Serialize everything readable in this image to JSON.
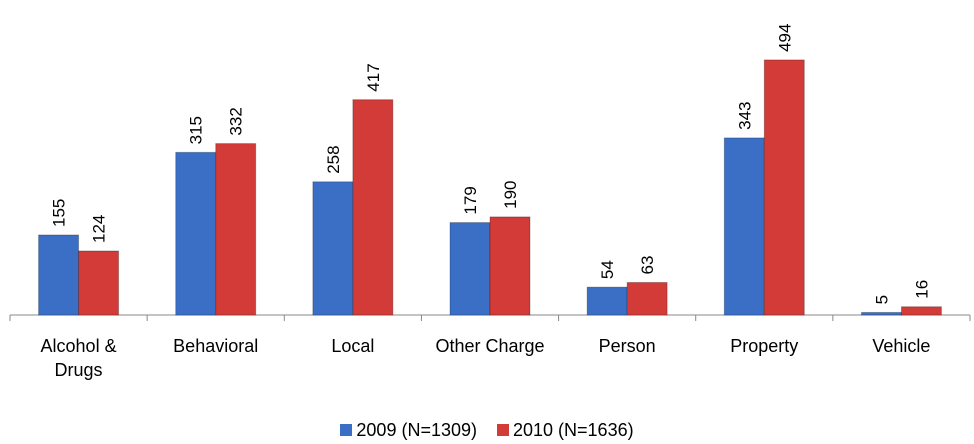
{
  "chart_data": {
    "type": "bar",
    "categories": [
      "Alcohol & Drugs",
      "Behavioral",
      "Local",
      "Other Charge",
      "Person",
      "Property",
      "Vehicle"
    ],
    "series": [
      {
        "name": "2009 (N=1309)",
        "color": "#3b6fc6",
        "values": [
          155,
          315,
          258,
          179,
          54,
          343,
          5
        ]
      },
      {
        "name": "2010 (N=1636)",
        "color": "#d23b37",
        "values": [
          124,
          332,
          417,
          190,
          63,
          494,
          16
        ]
      }
    ],
    "ylim": [
      0,
      550
    ]
  }
}
